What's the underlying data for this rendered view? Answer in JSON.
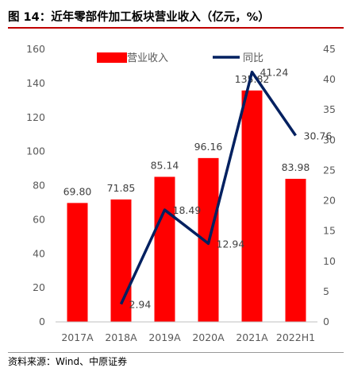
{
  "header": {
    "title": "图 14：近年零部件加工板块营业收入（亿元，%）"
  },
  "footer": {
    "source": "资料来源：Wind、中原证券"
  },
  "colors": {
    "bar": "#ff0000",
    "line": "#002060",
    "title_rule": "#c00000"
  },
  "chart_data": {
    "type": "bar",
    "categories": [
      "2017A",
      "2018A",
      "2019A",
      "2020A",
      "2021A",
      "2022H1"
    ],
    "series": [
      {
        "name": "营业收入",
        "type": "bar",
        "axis": "left",
        "values": [
          69.8,
          71.85,
          85.14,
          96.16,
          135.82,
          83.98
        ],
        "labels": [
          "69.80",
          "71.85",
          "85.14",
          "96.16",
          "135.82",
          "83.98"
        ]
      },
      {
        "name": "同比",
        "type": "line",
        "axis": "right",
        "values": [
          null,
          2.94,
          18.49,
          12.94,
          41.24,
          30.76
        ],
        "labels": [
          "",
          "2.94",
          "18.49",
          "12.94",
          "41.24",
          "30.76"
        ]
      }
    ],
    "y_left": {
      "min": 0,
      "max": 160,
      "ticks": [
        "0",
        "20",
        "40",
        "60",
        "80",
        "100",
        "120",
        "140",
        "160"
      ]
    },
    "y_right": {
      "min": 0,
      "max": 45,
      "ticks": [
        "0",
        "5",
        "10",
        "15",
        "20",
        "25",
        "30",
        "35",
        "40",
        "45"
      ]
    },
    "legend": {
      "position": "top",
      "items": [
        "营业收入",
        "同比"
      ]
    },
    "grid": false
  }
}
